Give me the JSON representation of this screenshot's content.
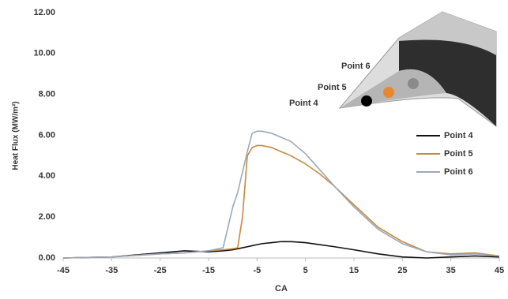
{
  "chart_data": {
    "type": "line",
    "y_label": "Heat Flux (MW/m²)",
    "x_label": "CA",
    "x": [
      -45,
      -35,
      -25,
      -20,
      -15,
      -12,
      -10,
      -9,
      -8,
      -7,
      -6,
      -5,
      -4,
      -2,
      0,
      2,
      5,
      8,
      11,
      15,
      20,
      25,
      30,
      35,
      40,
      45
    ],
    "series": [
      {
        "name": "Point 4",
        "color": "#111111",
        "values": [
          0,
          0.05,
          0.25,
          0.35,
          0.3,
          0.35,
          0.4,
          0.45,
          0.5,
          0.55,
          0.6,
          0.65,
          0.7,
          0.75,
          0.8,
          0.8,
          0.75,
          0.65,
          0.55,
          0.4,
          0.2,
          0.05,
          0,
          0.05,
          0.1,
          0.05
        ]
      },
      {
        "name": "Point 5",
        "color": "#c8893c",
        "values": [
          0,
          0.05,
          0.2,
          0.25,
          0.35,
          0.4,
          0.45,
          0.5,
          2,
          5,
          5.4,
          5.5,
          5.5,
          5.4,
          5.2,
          5,
          4.6,
          4.1,
          3.5,
          2.6,
          1.5,
          0.8,
          0.3,
          0.2,
          0.25,
          0.1
        ]
      },
      {
        "name": "Point 6",
        "color": "#9ba8ba",
        "values": [
          0,
          0.05,
          0.2,
          0.25,
          0.35,
          0.5,
          2.5,
          3.2,
          4.2,
          5.2,
          6.1,
          6.2,
          6.2,
          6.1,
          5.9,
          5.7,
          5.1,
          4.3,
          3.5,
          2.5,
          1.4,
          0.7,
          0.3,
          0.15,
          0.2,
          0.1
        ]
      }
    ],
    "xlim": [
      -45,
      45
    ],
    "xticks": [
      -45,
      -35,
      -25,
      -15,
      -5,
      5,
      15,
      25,
      35,
      45
    ],
    "ylim": [
      0,
      12
    ],
    "yticks": [
      {
        "value": 0,
        "label": "0.00"
      },
      {
        "value": 2,
        "label": "2.00"
      },
      {
        "value": 4,
        "label": "4.00"
      },
      {
        "value": 6,
        "label": "6.00"
      },
      {
        "value": 8,
        "label": "8.00"
      },
      {
        "value": 10,
        "label": "10.00"
      },
      {
        "value": 12,
        "label": "12.00"
      }
    ],
    "grid": false,
    "legend_position": "right",
    "annotations": [
      "Point 6",
      "Point 5",
      "Point 4"
    ]
  }
}
